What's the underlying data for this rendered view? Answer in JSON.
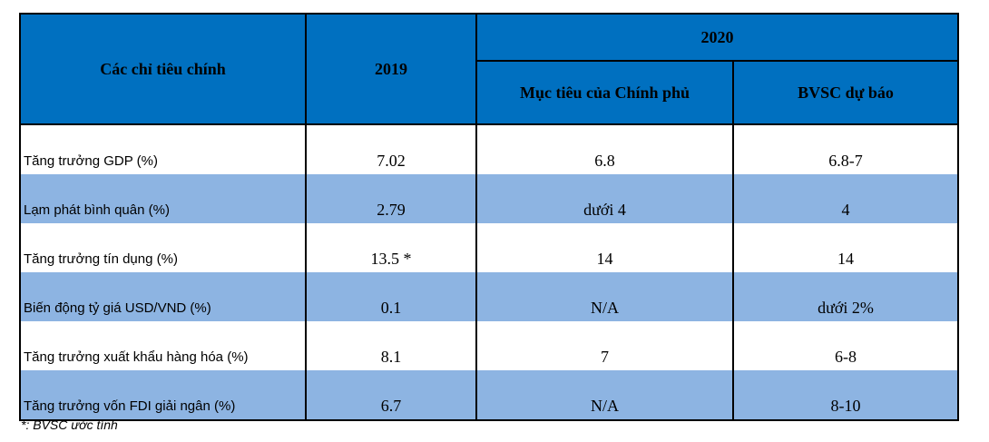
{
  "header": {
    "col1": "Các chỉ tiêu chính",
    "col2": "2019",
    "group": "2020",
    "sub1": "Mục tiêu của Chính phủ",
    "sub2": "BVSC dự báo"
  },
  "rows": [
    {
      "label": "Tăng trưởng GDP (%)",
      "v2019": "7.02",
      "gov": "6.8",
      "bvsc": "6.8-7"
    },
    {
      "label": "Lạm phát bình quân (%)",
      "v2019": "2.79",
      "gov": "dưới 4",
      "bvsc": "4"
    },
    {
      "label": "Tăng trưởng tín dụng (%)",
      "v2019": "13.5 *",
      "gov": "14",
      "bvsc": "14"
    },
    {
      "label": "Biến động tỷ giá USD/VND (%)",
      "v2019": "0.1",
      "gov": "N/A",
      "bvsc": "dưới  2%"
    },
    {
      "label": "Tăng trưởng xuất khẩu hàng hóa (%)",
      "v2019": "8.1",
      "gov": "7",
      "bvsc": "6-8"
    },
    {
      "label": "Tăng trưởng vốn FDI giải ngân (%)",
      "v2019": "6.7",
      "gov": "N/A",
      "bvsc": "8-10"
    }
  ],
  "footnote": "*: BVSC ước tính",
  "colors": {
    "header_bg": "#0070c0",
    "band_bg": "#8db4e2"
  }
}
